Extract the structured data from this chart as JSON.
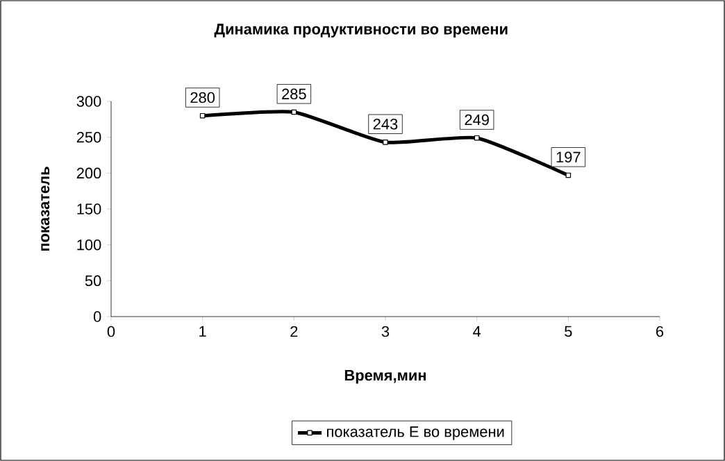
{
  "chart_data": {
    "type": "line",
    "title": "Динамика продуктивности во времени",
    "xlabel": "Время,мин",
    "ylabel": "показатель",
    "x": [
      1,
      2,
      3,
      4,
      5
    ],
    "series": [
      {
        "name": "показатель E во времени",
        "color": "#000000",
        "values": [
          280,
          285,
          243,
          249,
          197
        ]
      }
    ],
    "xlim": [
      0,
      6
    ],
    "xticks": [
      0,
      1,
      2,
      3,
      4,
      5,
      6
    ],
    "ylim": [
      0,
      300
    ],
    "yticks": [
      0,
      50,
      100,
      150,
      200,
      250,
      300
    ],
    "data_labels": true,
    "legend": "bottom",
    "marker": "square",
    "line_style": "solid",
    "grid": false
  }
}
